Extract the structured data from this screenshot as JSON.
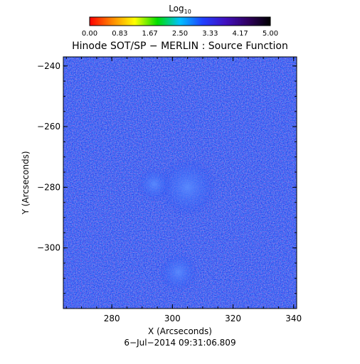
{
  "chart_data": {
    "type": "heatmap",
    "title": "Hinode SOT/SP − MERLIN : Source Function",
    "xlabel": "X (Arcseconds)",
    "ylabel": "Y (Arcseconds)",
    "footer": "6−Jul−2014 09:31:06.809",
    "xlim": [
      264,
      341
    ],
    "ylim": [
      -320,
      -237
    ],
    "x_ticks": [
      280,
      300,
      320,
      340
    ],
    "y_ticks": [
      -240,
      -260,
      -280,
      -300
    ],
    "colorbar": {
      "label_base": "Log",
      "label_sub": "10",
      "range": [
        0,
        5
      ],
      "ticks": [
        "0.00",
        "0.83",
        "1.67",
        "2.50",
        "3.33",
        "4.17",
        "5.00"
      ],
      "stops": [
        "#ff0000",
        "#ff8800",
        "#ffff00",
        "#00dd00",
        "#00c0ff",
        "#2040ff",
        "#4010c0",
        "#300060",
        "#000000"
      ]
    },
    "background_color": "#2347f0",
    "features": [
      {
        "cx": 305,
        "cy": -280,
        "r": 6,
        "value": 3.2
      },
      {
        "cx": 294,
        "cy": -279,
        "r": 3.5,
        "value": 3.3
      },
      {
        "cx": 302,
        "cy": -308,
        "r": 4,
        "value": 3.4
      }
    ]
  }
}
